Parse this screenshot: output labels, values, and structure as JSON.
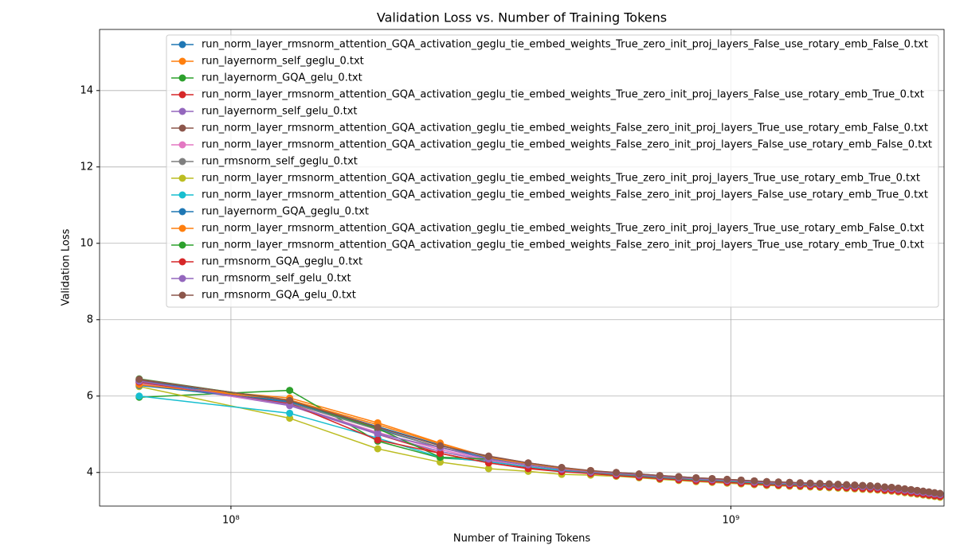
{
  "chart_data": {
    "type": "line",
    "title": "Validation Loss vs. Number of Training Tokens",
    "x_label": "Number of Training Tokens",
    "y_label": "Validation Loss",
    "xscale": "log",
    "grid": true,
    "legend": "upper right",
    "xlim": [
      54600000,
      2670000000
    ],
    "ylim": [
      3.12,
      15.6
    ],
    "xticks": [
      {
        "value": 100000000,
        "label": "10⁸"
      },
      {
        "value": 1000000000,
        "label": "10⁹"
      }
    ],
    "yticks": [
      4,
      6,
      8,
      10,
      12,
      14
    ],
    "x": [
      65536000,
      131072000,
      196608000,
      262144000,
      327680000,
      393216000,
      458752000,
      524288000,
      589824000,
      655360000,
      720896000,
      786432000,
      851968000,
      917504000,
      983040000,
      1048576000,
      1114112000,
      1179648000,
      1245184000,
      1310720000,
      1376256000,
      1441792000,
      1507328000,
      1572864000,
      1638400000,
      1703936000,
      1769472000,
      1835008000,
      1900544000,
      1966080000,
      2031616000,
      2097152000,
      2162688000,
      2228224000,
      2293760000,
      2359296000,
      2424832000,
      2490368000,
      2555904000,
      2621440000
    ],
    "series": [
      {
        "name": "run_norm_layer_rmsnorm_attention_GQA_activation_geglu_tie_embed_weights_True_zero_init_proj_layers_False_use_rotary_emb_False_0.txt",
        "color": "#1f77b4",
        "values": [
          6.4,
          5.85,
          5.15,
          4.65,
          4.38,
          4.2,
          4.08,
          4.0,
          3.96,
          3.92,
          3.88,
          3.85,
          3.82,
          3.8,
          3.78,
          3.76,
          3.74,
          3.72,
          3.71,
          3.7,
          3.69,
          3.68,
          3.67,
          3.66,
          3.65,
          3.64,
          3.63,
          3.62,
          3.61,
          3.6,
          3.58,
          3.57,
          3.55,
          3.53,
          3.51,
          3.49,
          3.47,
          3.45,
          3.43,
          3.41
        ]
      },
      {
        "name": "run_layernorm_self_geglu_0.txt",
        "color": "#ff7f0e",
        "values": [
          6.3,
          5.95,
          5.3,
          4.77,
          4.4,
          4.22,
          4.1,
          4.05,
          3.98,
          3.94,
          3.9,
          3.87,
          3.84,
          3.82,
          3.8,
          3.78,
          3.76,
          3.74,
          3.73,
          3.72,
          3.71,
          3.7,
          3.69,
          3.68,
          3.67,
          3.66,
          3.65,
          3.64,
          3.63,
          3.62,
          3.6,
          3.59,
          3.57,
          3.55,
          3.53,
          3.51,
          3.49,
          3.47,
          3.45,
          3.43
        ]
      },
      {
        "name": "run_layernorm_GQA_gelu_0.txt",
        "color": "#2ca02c",
        "values": [
          5.97,
          6.15,
          4.82,
          4.38,
          4.3,
          4.18,
          4.05,
          3.98,
          3.96,
          3.92,
          3.88,
          3.85,
          3.82,
          3.8,
          3.78,
          3.76,
          3.74,
          3.72,
          3.71,
          3.7,
          3.69,
          3.68,
          3.67,
          3.66,
          3.65,
          3.64,
          3.63,
          3.62,
          3.61,
          3.6,
          3.58,
          3.57,
          3.55,
          3.53,
          3.51,
          3.49,
          3.47,
          3.45,
          3.43,
          3.41
        ]
      },
      {
        "name": "run_norm_layer_rmsnorm_attention_GQA_activation_geglu_tie_embed_weights_True_zero_init_proj_layers_False_use_rotary_emb_True_0.txt",
        "color": "#d62728",
        "values": [
          6.35,
          5.8,
          5.0,
          4.5,
          4.25,
          4.12,
          4.04,
          3.98,
          3.93,
          3.89,
          3.85,
          3.82,
          3.79,
          3.77,
          3.75,
          3.73,
          3.71,
          3.69,
          3.68,
          3.67,
          3.66,
          3.65,
          3.64,
          3.63,
          3.62,
          3.61,
          3.6,
          3.59,
          3.58,
          3.57,
          3.55,
          3.54,
          3.52,
          3.5,
          3.48,
          3.46,
          3.44,
          3.42,
          3.4,
          3.38
        ]
      },
      {
        "name": "run_layernorm_self_gelu_0.txt",
        "color": "#9467bd",
        "values": [
          6.38,
          5.75,
          5.0,
          4.55,
          4.3,
          4.17,
          4.06,
          3.99,
          3.96,
          3.92,
          3.88,
          3.85,
          3.82,
          3.8,
          3.78,
          3.76,
          3.74,
          3.72,
          3.71,
          3.7,
          3.69,
          3.68,
          3.67,
          3.66,
          3.65,
          3.64,
          3.63,
          3.62,
          3.61,
          3.6,
          3.58,
          3.57,
          3.55,
          3.53,
          3.51,
          3.49,
          3.47,
          3.45,
          3.43,
          3.41
        ]
      },
      {
        "name": "run_norm_layer_rmsnorm_attention_GQA_activation_geglu_tie_embed_weights_False_zero_init_proj_layers_True_use_rotary_emb_False_0.txt",
        "color": "#8c564b",
        "values": [
          6.42,
          5.9,
          5.2,
          4.7,
          4.43,
          4.25,
          4.13,
          4.04,
          4.0,
          3.96,
          3.92,
          3.89,
          3.86,
          3.84,
          3.82,
          3.8,
          3.78,
          3.76,
          3.75,
          3.74,
          3.73,
          3.72,
          3.71,
          3.7,
          3.69,
          3.68,
          3.67,
          3.66,
          3.65,
          3.64,
          3.62,
          3.61,
          3.59,
          3.57,
          3.55,
          3.53,
          3.51,
          3.49,
          3.47,
          3.45
        ]
      },
      {
        "name": "run_norm_layer_rmsnorm_attention_GQA_activation_geglu_tie_embed_weights_False_zero_init_proj_layers_False_use_rotary_emb_False_0.txt",
        "color": "#e377c2",
        "values": [
          6.33,
          5.78,
          5.05,
          4.6,
          4.32,
          4.18,
          4.07,
          3.99,
          3.97,
          3.93,
          3.89,
          3.86,
          3.83,
          3.81,
          3.79,
          3.77,
          3.75,
          3.73,
          3.72,
          3.71,
          3.7,
          3.69,
          3.68,
          3.67,
          3.66,
          3.65,
          3.64,
          3.63,
          3.62,
          3.61,
          3.59,
          3.58,
          3.56,
          3.54,
          3.52,
          3.5,
          3.48,
          3.46,
          3.44,
          3.42
        ]
      },
      {
        "name": "run_rmsnorm_self_geglu_0.txt",
        "color": "#7f7f7f",
        "values": [
          6.36,
          5.82,
          5.12,
          4.66,
          4.38,
          4.22,
          4.1,
          4.02,
          3.98,
          3.94,
          3.9,
          3.87,
          3.84,
          3.82,
          3.8,
          3.78,
          3.76,
          3.74,
          3.73,
          3.72,
          3.71,
          3.7,
          3.69,
          3.68,
          3.67,
          3.66,
          3.65,
          3.64,
          3.63,
          3.62,
          3.6,
          3.59,
          3.57,
          3.55,
          3.53,
          3.51,
          3.49,
          3.47,
          3.45,
          3.43
        ]
      },
      {
        "name": "run_norm_layer_rmsnorm_attention_GQA_activation_geglu_tie_embed_weights_True_zero_init_proj_layers_True_use_rotary_emb_True_0.txt",
        "color": "#bcbd22",
        "values": [
          6.25,
          5.42,
          4.62,
          4.27,
          4.1,
          4.03,
          3.95,
          3.93,
          3.9,
          3.86,
          3.82,
          3.79,
          3.76,
          3.74,
          3.72,
          3.7,
          3.68,
          3.66,
          3.65,
          3.64,
          3.63,
          3.62,
          3.61,
          3.6,
          3.59,
          3.58,
          3.57,
          3.56,
          3.55,
          3.54,
          3.52,
          3.51,
          3.49,
          3.47,
          3.45,
          3.43,
          3.41,
          3.39,
          3.37,
          3.35
        ]
      },
      {
        "name": "run_norm_layer_rmsnorm_attention_GQA_activation_geglu_tie_embed_weights_False_zero_init_proj_layers_False_use_rotary_emb_True_0.txt",
        "color": "#17becf",
        "values": [
          6.0,
          5.55,
          4.9,
          4.4,
          4.28,
          4.15,
          4.05,
          3.98,
          3.94,
          3.9,
          3.86,
          3.83,
          3.8,
          3.78,
          3.76,
          3.74,
          3.72,
          3.7,
          3.69,
          3.68,
          3.67,
          3.66,
          3.65,
          3.64,
          3.63,
          3.62,
          3.61,
          3.6,
          3.59,
          3.58,
          3.56,
          3.55,
          3.53,
          3.51,
          3.49,
          3.47,
          3.45,
          3.43,
          3.41,
          3.39
        ]
      },
      {
        "name": "run_layernorm_GQA_geglu_0.txt",
        "color": "#1f77b4",
        "values": [
          6.28,
          5.85,
          5.2,
          4.72,
          4.35,
          4.2,
          4.08,
          4.01,
          3.97,
          3.93,
          3.89,
          3.86,
          3.83,
          3.81,
          3.79,
          3.77,
          3.75,
          3.73,
          3.72,
          3.71,
          3.7,
          3.69,
          3.68,
          3.67,
          3.66,
          3.65,
          3.64,
          3.63,
          3.62,
          3.61,
          3.59,
          3.58,
          3.56,
          3.54,
          3.52,
          3.5,
          3.48,
          3.46,
          3.44,
          3.42
        ]
      },
      {
        "name": "run_norm_layer_rmsnorm_attention_GQA_activation_geglu_tie_embed_weights_True_zero_init_proj_layers_True_use_rotary_emb_False_0.txt",
        "color": "#ff7f0e",
        "values": [
          6.3,
          5.9,
          5.25,
          4.75,
          4.4,
          4.22,
          4.1,
          4.04,
          3.98,
          3.94,
          3.9,
          3.87,
          3.84,
          3.82,
          3.8,
          3.78,
          3.76,
          3.74,
          3.73,
          3.72,
          3.71,
          3.7,
          3.69,
          3.68,
          3.67,
          3.66,
          3.65,
          3.64,
          3.63,
          3.62,
          3.6,
          3.59,
          3.57,
          3.55,
          3.53,
          3.51,
          3.49,
          3.47,
          3.45,
          3.43
        ]
      },
      {
        "name": "run_norm_layer_rmsnorm_attention_GQA_activation_geglu_tie_embed_weights_False_zero_init_proj_layers_True_use_rotary_emb_True_0.txt",
        "color": "#2ca02c",
        "values": [
          6.45,
          5.88,
          5.15,
          4.4,
          4.35,
          4.2,
          4.08,
          4.0,
          3.96,
          3.92,
          3.88,
          3.85,
          3.82,
          3.8,
          3.78,
          3.76,
          3.74,
          3.72,
          3.71,
          3.7,
          3.69,
          3.68,
          3.67,
          3.66,
          3.65,
          3.64,
          3.63,
          3.62,
          3.61,
          3.6,
          3.58,
          3.57,
          3.55,
          3.53,
          3.51,
          3.49,
          3.47,
          3.45,
          3.43,
          3.41
        ]
      },
      {
        "name": "run_rmsnorm_GQA_geglu_0.txt",
        "color": "#d62728",
        "values": [
          6.37,
          5.8,
          4.85,
          4.5,
          4.25,
          4.1,
          4.02,
          3.97,
          3.92,
          3.88,
          3.84,
          3.81,
          3.78,
          3.76,
          3.74,
          3.72,
          3.7,
          3.68,
          3.67,
          3.66,
          3.65,
          3.64,
          3.63,
          3.62,
          3.61,
          3.6,
          3.59,
          3.58,
          3.57,
          3.56,
          3.54,
          3.53,
          3.51,
          3.49,
          3.47,
          3.45,
          3.43,
          3.41,
          3.39,
          3.37
        ]
      },
      {
        "name": "run_rmsnorm_self_gelu_0.txt",
        "color": "#9467bd",
        "values": [
          6.39,
          5.78,
          5.02,
          4.65,
          4.35,
          4.2,
          4.08,
          4.01,
          3.97,
          3.93,
          3.89,
          3.86,
          3.83,
          3.81,
          3.79,
          3.77,
          3.75,
          3.73,
          3.72,
          3.71,
          3.7,
          3.69,
          3.68,
          3.67,
          3.66,
          3.65,
          3.64,
          3.63,
          3.62,
          3.61,
          3.59,
          3.58,
          3.56,
          3.54,
          3.52,
          3.5,
          3.48,
          3.46,
          3.44,
          3.42
        ]
      },
      {
        "name": "run_rmsnorm_GQA_gelu_0.txt",
        "color": "#8c564b",
        "values": [
          6.44,
          5.88,
          5.18,
          4.7,
          4.42,
          4.25,
          4.13,
          4.05,
          4.0,
          3.96,
          3.92,
          3.89,
          3.86,
          3.84,
          3.82,
          3.8,
          3.78,
          3.76,
          3.75,
          3.74,
          3.73,
          3.72,
          3.71,
          3.7,
          3.69,
          3.68,
          3.67,
          3.66,
          3.65,
          3.64,
          3.62,
          3.61,
          3.59,
          3.57,
          3.55,
          3.53,
          3.51,
          3.49,
          3.47,
          3.45
        ]
      }
    ]
  }
}
